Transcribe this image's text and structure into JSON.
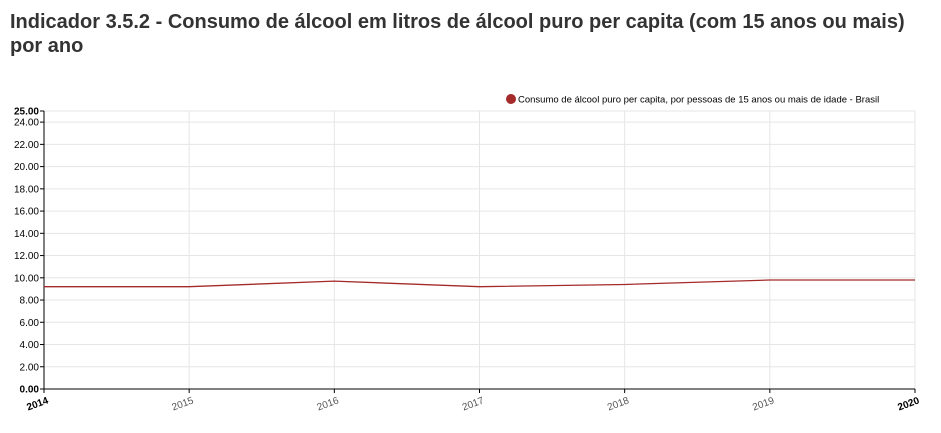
{
  "page": {
    "title": "Indicador 3.5.2 - Consumo de álcool em litros de álcool puro per capita (com 15 anos ou mais) por ano"
  },
  "colors": {
    "series": "#a52a2a",
    "grid": "#e6e6e6",
    "axis": "#000000",
    "text": "#000000",
    "title": "#333333"
  },
  "chart_data": {
    "type": "line",
    "title": "",
    "xlabel": "",
    "ylabel": "",
    "x": [
      2014,
      2015,
      2016,
      2017,
      2018,
      2019,
      2020
    ],
    "series": [
      {
        "name": "Consumo de álcool puro per capita, por pessoas de 15 anos ou mais de idade - Brasil",
        "color": "#a52a2a",
        "values": [
          9.2,
          9.2,
          9.7,
          9.2,
          9.4,
          9.8,
          9.8
        ]
      }
    ],
    "xticks": [
      "2014",
      "2015",
      "2016",
      "2017",
      "2018",
      "2019",
      "2020"
    ],
    "yticks": [
      "0.00",
      "2.00",
      "4.00",
      "6.00",
      "8.00",
      "10.00",
      "12.00",
      "14.00",
      "16.00",
      "18.00",
      "20.00",
      "22.00",
      "24.00",
      "25.00"
    ],
    "ylim": [
      0,
      25
    ],
    "xlim": [
      2014,
      2020
    ],
    "grid": true,
    "legend_position": "top-right"
  }
}
